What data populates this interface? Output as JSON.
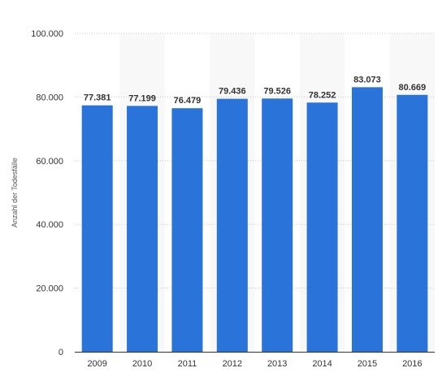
{
  "chart_data": {
    "type": "bar",
    "title": "",
    "xlabel": "",
    "ylabel": "Anzahl der Todesfälle",
    "categories": [
      "2009",
      "2010",
      "2011",
      "2012",
      "2013",
      "2014",
      "2015",
      "2016"
    ],
    "values": [
      77381,
      77199,
      76479,
      79436,
      79526,
      78252,
      83073,
      80669
    ],
    "value_labels": [
      "77.381",
      "77.199",
      "76.479",
      "79.436",
      "79.526",
      "78.252",
      "83.073",
      "80.669"
    ],
    "ylim": [
      0,
      100000
    ],
    "yticks": [
      0,
      20000,
      40000,
      60000,
      80000,
      100000
    ],
    "ytick_labels": [
      "0",
      "20.000",
      "40.000",
      "60.000",
      "80.000",
      "100.000"
    ],
    "grid": true,
    "legend": "none",
    "colors": {
      "bar": "#2a73d9",
      "band": "#f8f8f8",
      "grid": "#c8c8c8",
      "axis": "#333333"
    }
  }
}
